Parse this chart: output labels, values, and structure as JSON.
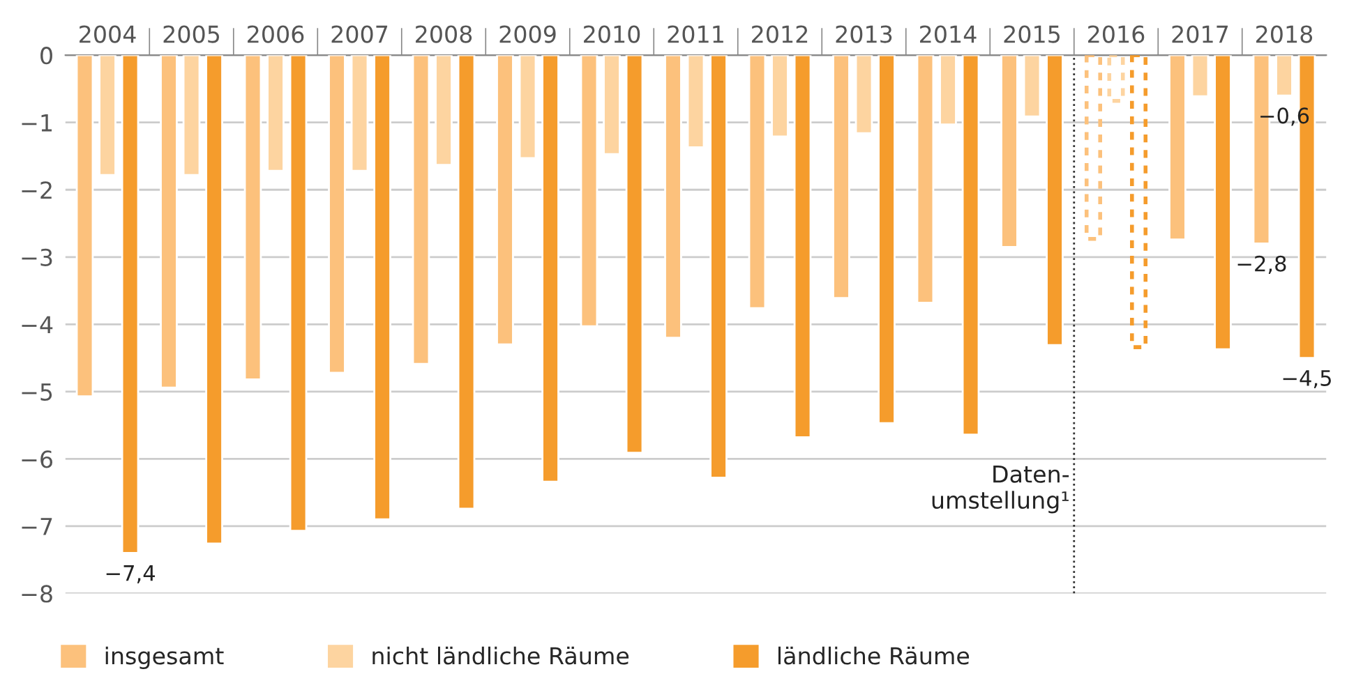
{
  "chart_data": {
    "type": "bar",
    "categories": [
      "2004",
      "2005",
      "2006",
      "2007",
      "2008",
      "2009",
      "2010",
      "2011",
      "2012",
      "2013",
      "2014",
      "2015",
      "2016",
      "2017",
      "2018"
    ],
    "series": [
      {
        "name": "insgesamt",
        "color": "#fcc17c",
        "values": [
          -5.07,
          -4.94,
          -4.82,
          -4.72,
          -4.59,
          -4.3,
          -4.03,
          -4.2,
          -3.76,
          -3.61,
          -3.68,
          -2.85,
          null,
          -2.74,
          -2.8
        ],
        "value_labels": [
          null,
          null,
          null,
          null,
          null,
          null,
          null,
          null,
          null,
          null,
          null,
          null,
          null,
          null,
          "−2,8"
        ]
      },
      {
        "name": "nicht ländliche Räume",
        "color": "#fdd4a0",
        "values": [
          -1.78,
          -1.78,
          -1.72,
          -1.72,
          -1.63,
          -1.53,
          -1.47,
          -1.37,
          -1.21,
          -1.16,
          -1.03,
          -0.91,
          null,
          -0.61,
          -0.6
        ],
        "value_labels": [
          null,
          null,
          null,
          null,
          null,
          null,
          null,
          null,
          null,
          null,
          null,
          null,
          null,
          null,
          "−0,6"
        ]
      },
      {
        "name": "ländliche Räume",
        "color": "#f59c2c",
        "values": [
          -7.4,
          -7.26,
          -7.07,
          -6.9,
          -6.74,
          -6.34,
          -5.91,
          -6.28,
          -5.68,
          -5.47,
          -5.64,
          -4.31,
          null,
          -4.37,
          -4.5
        ],
        "value_labels": [
          "−7,4",
          null,
          null,
          null,
          null,
          null,
          null,
          null,
          null,
          null,
          null,
          null,
          null,
          null,
          "−4,5"
        ]
      },
      {
        "color": "#fcc17c",
        "line_style": "dashed",
        "values": [
          null,
          null,
          null,
          null,
          null,
          null,
          null,
          null,
          null,
          null,
          null,
          null,
          -2.73,
          null,
          null
        ]
      },
      {
        "color": "#fdd4a0",
        "line_style": "dashed",
        "values": [
          null,
          null,
          null,
          null,
          null,
          null,
          null,
          null,
          null,
          null,
          null,
          null,
          -0.68,
          null,
          null
        ]
      },
      {
        "color": "#f59c2c",
        "line_style": "dashed",
        "values": [
          null,
          null,
          null,
          null,
          null,
          null,
          null,
          null,
          null,
          null,
          null,
          null,
          -4.34,
          null,
          null
        ]
      }
    ],
    "ylim": [
      -8,
      0
    ],
    "yticks": [
      0,
      {
        "value": -1,
        "label": "−1"
      },
      {
        "value": -2,
        "label": "−2"
      },
      {
        "value": -3,
        "label": "−3"
      },
      {
        "value": -4,
        "label": "−4"
      },
      {
        "value": -5,
        "label": "−5"
      },
      {
        "value": -6,
        "label": "−6"
      },
      {
        "value": -7,
        "label": "−7"
      },
      {
        "value": -8,
        "label": "−8"
      }
    ],
    "grid": "y",
    "legend": "bottom left",
    "ref_lines": [
      {
        "axis": "x",
        "value": "2016",
        "label": "Daten-\numstellung¹",
        "color": "#333333",
        "line_style": "dotted"
      }
    ]
  }
}
